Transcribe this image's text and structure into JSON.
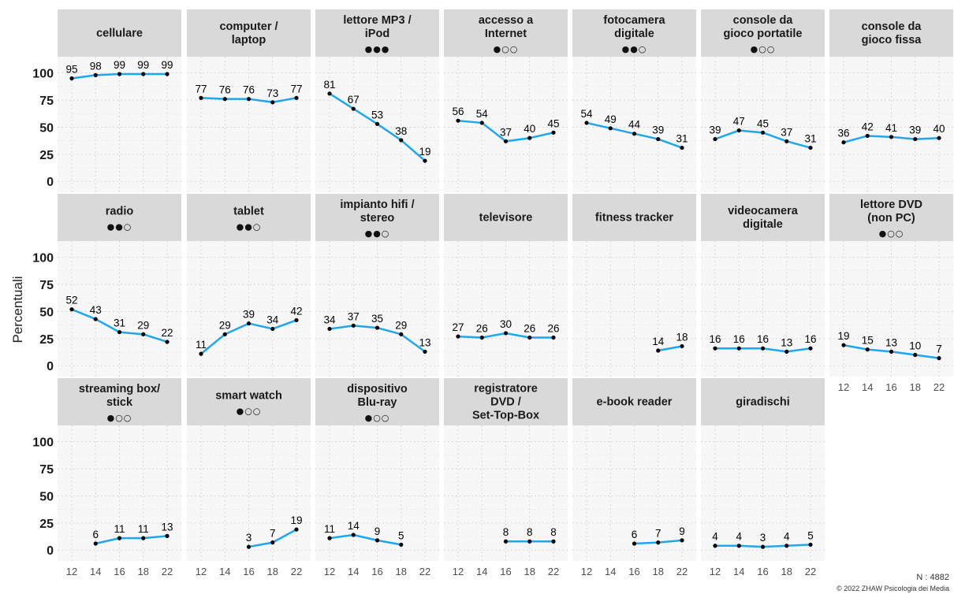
{
  "y_axis_label": "Percentuali",
  "n_label": "N : 4882",
  "copyright": "© 2022 ZHAW Psicologia dei Media",
  "colors": {
    "line": "#1ea7ee",
    "point": "#000000",
    "strip": "#d9d9d9",
    "panel": "#f7f7f7",
    "grid": "#cfcfcf"
  },
  "chart_data": {
    "type": "line",
    "x_ticks": [
      "12",
      "14",
      "16",
      "18",
      "22"
    ],
    "y_ticks": [
      "0",
      "25",
      "50",
      "75",
      "100"
    ],
    "ylim": [
      -10,
      115
    ],
    "panels": [
      {
        "title": [
          "cellulare"
        ],
        "dots": "",
        "values": [
          95,
          98,
          99,
          99,
          99
        ]
      },
      {
        "title": [
          "computer /",
          "laptop"
        ],
        "dots": "",
        "values": [
          77,
          76,
          76,
          73,
          77
        ]
      },
      {
        "title": [
          "lettore MP3 /",
          "iPod"
        ],
        "dots": "●●●",
        "values": [
          81,
          67,
          53,
          38,
          19
        ]
      },
      {
        "title": [
          "accesso a",
          "Internet"
        ],
        "dots": "●○○",
        "values": [
          56,
          54,
          37,
          40,
          45
        ]
      },
      {
        "title": [
          "fotocamera",
          "digitale"
        ],
        "dots": "●●○",
        "values": [
          54,
          49,
          44,
          39,
          31
        ]
      },
      {
        "title": [
          "console da",
          "gioco portatile"
        ],
        "dots": "●○○",
        "values": [
          39,
          47,
          45,
          37,
          31
        ]
      },
      {
        "title": [
          "console da",
          "gioco fissa"
        ],
        "dots": "",
        "values": [
          36,
          42,
          41,
          39,
          40
        ]
      },
      {
        "title": [
          "radio"
        ],
        "dots": "●●○",
        "values": [
          52,
          43,
          31,
          29,
          22
        ]
      },
      {
        "title": [
          "tablet"
        ],
        "dots": "●●○",
        "values": [
          11,
          29,
          39,
          34,
          42
        ]
      },
      {
        "title": [
          "impianto hifi /",
          "stereo"
        ],
        "dots": "●●○",
        "values": [
          34,
          37,
          35,
          29,
          13
        ]
      },
      {
        "title": [
          "televisore"
        ],
        "dots": "",
        "values": [
          27,
          26,
          30,
          26,
          26
        ]
      },
      {
        "title": [
          "fitness tracker"
        ],
        "dots": "",
        "values": [
          null,
          null,
          null,
          14,
          18
        ]
      },
      {
        "title": [
          "videocamera",
          "digitale"
        ],
        "dots": "",
        "values": [
          16,
          16,
          16,
          13,
          16
        ]
      },
      {
        "title": [
          "lettore DVD",
          "(non PC)"
        ],
        "dots": "●○○",
        "values": [
          19,
          15,
          13,
          10,
          7
        ]
      },
      {
        "title": [
          "streaming box/",
          "stick"
        ],
        "dots": "●○○",
        "values": [
          null,
          6,
          11,
          11,
          13
        ]
      },
      {
        "title": [
          "smart watch"
        ],
        "dots": "●○○",
        "values": [
          null,
          null,
          3,
          7,
          19
        ]
      },
      {
        "title": [
          "dispositivo",
          "Blu-ray"
        ],
        "dots": "●○○",
        "values": [
          11,
          14,
          9,
          5,
          null
        ]
      },
      {
        "title": [
          "registratore",
          "DVD /",
          "Set-Top-Box"
        ],
        "dots": "",
        "values": [
          null,
          null,
          8,
          8,
          8
        ]
      },
      {
        "title": [
          "e-book reader"
        ],
        "dots": "",
        "values": [
          null,
          null,
          6,
          7,
          9
        ]
      },
      {
        "title": [
          "giradischi"
        ],
        "dots": "",
        "values": [
          4,
          4,
          3,
          4,
          5
        ]
      }
    ]
  }
}
